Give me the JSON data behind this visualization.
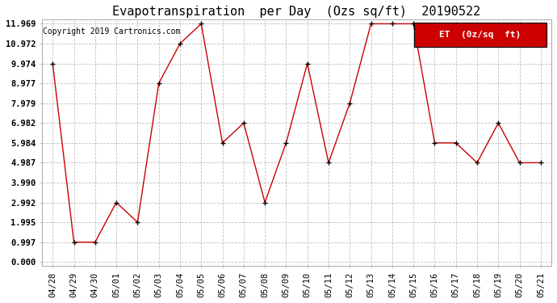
{
  "title": "Evapotranspiration  per Day  (Ozs sq/ft)  20190522",
  "copyright": "Copyright 2019 Cartronics.com",
  "legend_label": "ET  (0z/sq  ft)",
  "x_labels": [
    "04/28",
    "04/29",
    "04/30",
    "05/01",
    "05/02",
    "05/03",
    "05/04",
    "05/05",
    "05/06",
    "05/07",
    "05/08",
    "05/09",
    "05/10",
    "05/11",
    "05/12",
    "05/13",
    "05/14",
    "05/15",
    "05/16",
    "05/17",
    "05/18",
    "05/19",
    "05/20",
    "05/21"
  ],
  "y_values": [
    9.974,
    0.997,
    0.997,
    2.992,
    1.995,
    8.977,
    10.972,
    11.969,
    5.984,
    6.982,
    2.992,
    5.984,
    9.974,
    4.987,
    7.979,
    11.969,
    11.969,
    11.969,
    5.984,
    5.984,
    4.987,
    6.982,
    4.987,
    4.987
  ],
  "y_ticks": [
    0.0,
    0.997,
    1.995,
    2.992,
    3.99,
    4.987,
    5.984,
    6.982,
    7.979,
    8.977,
    9.974,
    10.972,
    11.969
  ],
  "ylim_min": 0.0,
  "ylim_max": 11.969,
  "line_color": "#cc0000",
  "marker_color": "#000000",
  "background_color": "#ffffff",
  "grid_color": "#c0c0c0",
  "title_fontsize": 11,
  "copyright_fontsize": 7,
  "tick_fontsize": 7.5,
  "legend_bg_color": "#cc0000",
  "legend_text_color": "#ffffff",
  "legend_fontsize": 8
}
